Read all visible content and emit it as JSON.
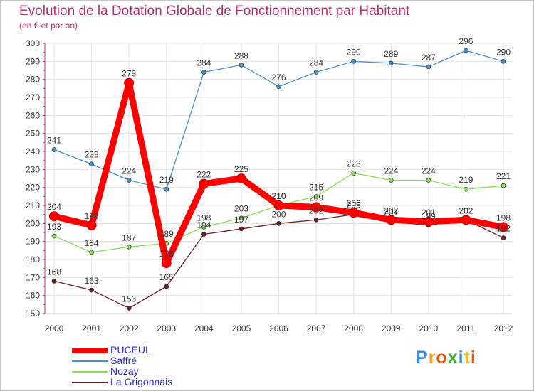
{
  "chart_data": {
    "type": "line",
    "title": "Evolution de la Dotation Globale de Fonctionnement par Habitant",
    "subtitle": "(en € et par an)",
    "xlabel": "",
    "ylabel": "",
    "x": [
      "2000",
      "2001",
      "2002",
      "2003",
      "2004",
      "2005",
      "2006",
      "2007",
      "2008",
      "2009",
      "2010",
      "2011",
      "2012"
    ],
    "ylim": [
      150,
      300
    ],
    "yticks": [
      150,
      160,
      170,
      180,
      190,
      200,
      210,
      220,
      230,
      240,
      250,
      260,
      270,
      280,
      290,
      300
    ],
    "grid": true,
    "legend_position": "bottom-left",
    "series": [
      {
        "name": "PUCEUL",
        "color": "#ff0000",
        "emphasis": true,
        "values": [
          204,
          199,
          278,
          178,
          222,
          225,
          210,
          209,
          206,
          202,
          201,
          202,
          198
        ]
      },
      {
        "name": "Saffré",
        "color": "#4a90c8",
        "emphasis": false,
        "values": [
          241,
          233,
          224,
          219,
          284,
          288,
          276,
          284,
          290,
          289,
          287,
          296,
          290
        ]
      },
      {
        "name": "Nozay",
        "color": "#88dd55",
        "emphasis": false,
        "values": [
          193,
          184,
          187,
          189,
          198,
          203,
          210,
          215,
          228,
          224,
          224,
          219,
          221
        ]
      },
      {
        "name": "La Grigonnais",
        "color": "#6b1f25",
        "emphasis": false,
        "values": [
          168,
          163,
          153,
          165,
          194,
          197,
          200,
          202,
          205,
          201,
          199,
          202,
          192
        ]
      }
    ]
  },
  "branding": {
    "logo_text": "Proxiti",
    "letter_colors": [
      "#3a8fd6",
      "#f0a020",
      "#e05a10",
      "#3aaa35",
      "#3a8fd6",
      "#f0c020",
      "#e05a10"
    ]
  }
}
